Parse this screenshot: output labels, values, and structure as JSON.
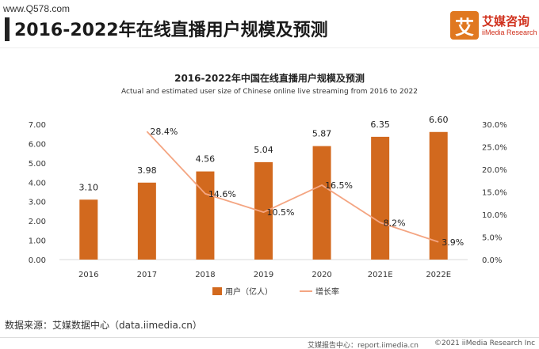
{
  "watermark": "www.Q578.com",
  "main_title": "2016-2022年在线直播用户规模及预测",
  "logo": {
    "glyph": "艾",
    "name": "艾媒咨询",
    "sub": "iiMedia Research",
    "color": "#e07820"
  },
  "source": "数据来源：艾媒数据中心（data.iimedia.cn）",
  "footer": {
    "report": "艾媒报告中心：report.iimedia.cn",
    "copyright": "©2021  iiMedia Research  Inc"
  },
  "chart_data": {
    "type": "bar",
    "title": "2016-2022年中国在线直播用户规模及预测",
    "subtitle": "Actual and estimated user size of Chinese online live streaming from 2016 to 2022",
    "categories": [
      "2016",
      "2017",
      "2018",
      "2019",
      "2020",
      "2021E",
      "2022E"
    ],
    "series": [
      {
        "name": "用户（亿人）",
        "type": "bar",
        "axis": "left",
        "color": "#d2691e",
        "values": [
          3.1,
          3.98,
          4.56,
          5.04,
          5.87,
          6.35,
          6.6
        ],
        "labels": [
          "3.10",
          "3.98",
          "4.56",
          "5.04",
          "5.87",
          "6.35",
          "6.60"
        ]
      },
      {
        "name": "增长率",
        "type": "line",
        "axis": "right",
        "color": "#f4a582",
        "values": [
          null,
          28.4,
          14.6,
          10.5,
          16.5,
          8.2,
          3.9
        ],
        "labels": [
          null,
          "28.4%",
          "14.6%",
          "10.5%",
          "16.5%",
          "8.2%",
          "3.9%"
        ]
      }
    ],
    "y_left": {
      "ylim": [
        0,
        7
      ],
      "ticks": [
        "0.00",
        "1.00",
        "2.00",
        "3.00",
        "4.00",
        "5.00",
        "6.00",
        "7.00"
      ]
    },
    "y_right": {
      "ylim": [
        0,
        30
      ],
      "ticks": [
        "0.0%",
        "5.0%",
        "10.0%",
        "15.0%",
        "20.0%",
        "25.0%",
        "30.0%"
      ]
    },
    "grid": false,
    "legend": "bottom-center"
  }
}
